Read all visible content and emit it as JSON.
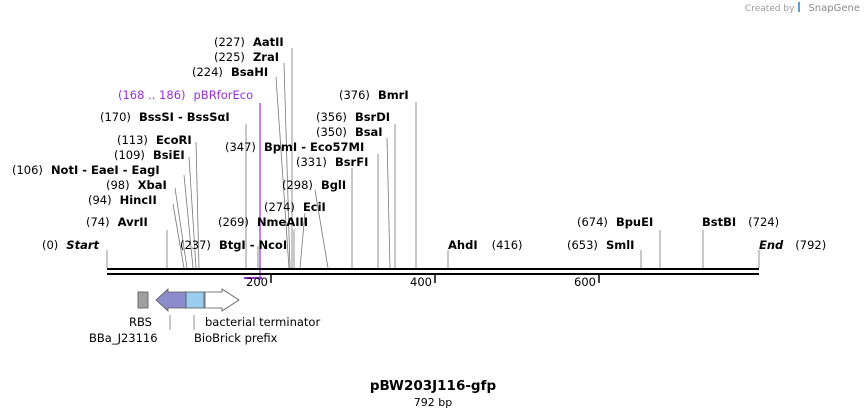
{
  "credit": {
    "text": "Created by",
    "brand": "SnapGene"
  },
  "plasmid": {
    "name": "pBW203J116-gfp",
    "length_label": "792 bp",
    "length": 792
  },
  "sites": [
    {
      "pos": "(0)",
      "name": "Start",
      "bp": 0,
      "italic": true
    },
    {
      "pos": "(74)",
      "name": "AvrII",
      "bp": 74
    },
    {
      "pos": "(94)",
      "name": "HincII",
      "bp": 94
    },
    {
      "pos": "(98)",
      "name": "XbaI",
      "bp": 98
    },
    {
      "pos": "(106)",
      "name": "NotI  -  EaeI  -  EagI",
      "bp": 106
    },
    {
      "pos": "(109)",
      "name": "BsiEI",
      "bp": 109
    },
    {
      "pos": "(113)",
      "name": "EcoRI",
      "bp": 113
    },
    {
      "pos": "(170)",
      "name": "BssSI  -  BssSαI",
      "bp": 170
    },
    {
      "pos": "(224)",
      "name": "BsaHI",
      "bp": 224
    },
    {
      "pos": "(225)",
      "name": "ZraI",
      "bp": 225
    },
    {
      "pos": "(227)",
      "name": "AatII",
      "bp": 227
    },
    {
      "pos": "(237)",
      "name": "BtgI  -  NcoI",
      "bp": 237
    },
    {
      "pos": "(269)",
      "name": "NmeAIII",
      "bp": 269
    },
    {
      "pos": "(274)",
      "name": "EciI",
      "bp": 274
    },
    {
      "pos": "(298)",
      "name": "BglI",
      "bp": 298
    },
    {
      "pos": "(331)",
      "name": "BsrFI",
      "bp": 331
    },
    {
      "pos": "(347)",
      "name": "BpmI  -  Eco57MI",
      "bp": 347
    },
    {
      "pos": "(350)",
      "name": "BsaI",
      "bp": 350
    },
    {
      "pos": "(356)",
      "name": "BsrDI",
      "bp": 356
    },
    {
      "pos": "(376)",
      "name": "BmrI",
      "bp": 376
    },
    {
      "pos": "(416)",
      "name": "AhdI",
      "bp": 416
    },
    {
      "pos": "(653)",
      "name": "SmlI",
      "bp": 653
    },
    {
      "pos": "(674)",
      "name": "BpuEI",
      "bp": 674
    },
    {
      "pos": "(724)",
      "name": "BstBI",
      "bp": 724
    },
    {
      "pos": "(792)",
      "name": "End",
      "bp": 792,
      "italic": true
    }
  ],
  "primer": {
    "range": "(168 .. 186)",
    "name": "pBRforEco",
    "color": "#9b30d9"
  },
  "ticks": [
    "200",
    "400",
    "600"
  ],
  "features": [
    {
      "name": "RBS",
      "color": "#a0a0a0"
    },
    {
      "name": "BBa_J23116",
      "color": "#8c8ccc"
    },
    {
      "name": "BioBrick prefix",
      "color": "#99ccee"
    },
    {
      "name": "bacterial terminator",
      "color": "#ffffff"
    }
  ]
}
